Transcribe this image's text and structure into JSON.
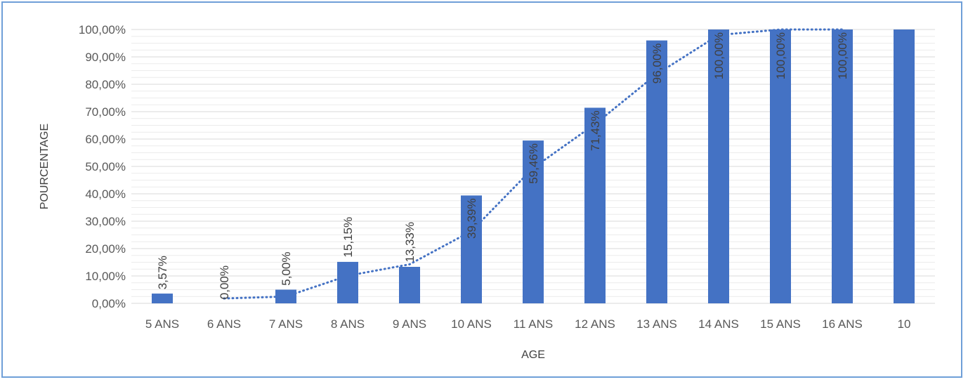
{
  "chart_data": {
    "type": "bar",
    "title": "",
    "xlabel": "AGE",
    "ylabel": "POURCENTAGE",
    "categories": [
      "5 ANS",
      "6 ANS",
      "7 ANS",
      "8 ANS",
      "9 ANS",
      "10 ANS",
      "11 ANS",
      "12 ANS",
      "13 ANS",
      "14 ANS",
      "15 ANS",
      "16 ANS",
      "10"
    ],
    "values": [
      3.57,
      0.0,
      5.0,
      15.15,
      13.33,
      39.39,
      59.46,
      71.43,
      96.0,
      100.0,
      100.0,
      100.0,
      100.0
    ],
    "data_labels": [
      "3,57%",
      "0,00%",
      "5,00%",
      "15,15%",
      "13,33%",
      "39,39%",
      "59,46%",
      "71,43%",
      "96,00%",
      "100,00%",
      "100,00%",
      "100,00%",
      ""
    ],
    "y_ticks": [
      0,
      10,
      20,
      30,
      40,
      50,
      60,
      70,
      80,
      90,
      100
    ],
    "y_tick_labels": [
      "0,00%",
      "10,00%",
      "20,00%",
      "30,00%",
      "40,00%",
      "50,00%",
      "60,00%",
      "70,00%",
      "80,00%",
      "90,00%",
      "100,00%"
    ],
    "ylim": [
      0,
      100
    ],
    "trendline": {
      "style": "dotted",
      "type": "moving average",
      "values": [
        null,
        1.79,
        2.5,
        10.08,
        14.24,
        26.36,
        49.43,
        65.45,
        83.72,
        98.0,
        100.0,
        100.0,
        null
      ]
    },
    "colors": {
      "bar": "#4472c4",
      "trendline": "#4472c4",
      "grid": "#d9d9d9",
      "frame": "#6f9fd8"
    },
    "grid": true,
    "legend": "none"
  }
}
